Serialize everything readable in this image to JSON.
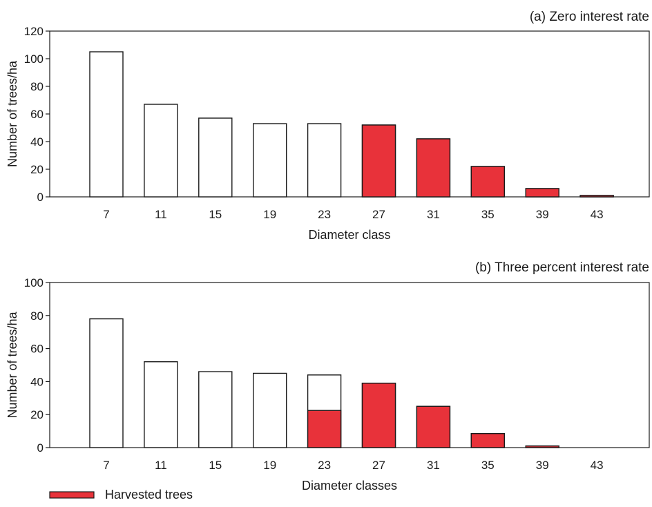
{
  "colors": {
    "harvested": "#e8323a",
    "standing": "#ffffff",
    "outline": "#1a1a1a"
  },
  "legend": {
    "harvested_label": "Harvested trees"
  },
  "chart_data": [
    {
      "type": "bar",
      "title": "(a) Zero interest rate",
      "xlabel": "Diameter class",
      "ylabel": "Number of trees/ha",
      "ylim": [
        0,
        120
      ],
      "yticks": [
        0,
        20,
        40,
        60,
        80,
        100,
        120
      ],
      "categories": [
        "7",
        "11",
        "15",
        "19",
        "23",
        "27",
        "31",
        "35",
        "39",
        "43"
      ],
      "series": [
        {
          "name": "",
          "role": "standing",
          "values": [
            105,
            67,
            57,
            53,
            53,
            52,
            42,
            22,
            6,
            1
          ]
        },
        {
          "name": "Harvested trees",
          "role": "harvested",
          "values": [
            0,
            0,
            0,
            0,
            0,
            52,
            42,
            22,
            6,
            1
          ]
        }
      ]
    },
    {
      "type": "bar",
      "title": "(b) Three percent interest rate",
      "xlabel": "Diameter classes",
      "ylabel": "Number of trees/ha",
      "ylim": [
        0,
        100
      ],
      "yticks": [
        0,
        20,
        40,
        60,
        80,
        100
      ],
      "categories": [
        "7",
        "11",
        "15",
        "19",
        "23",
        "27",
        "31",
        "35",
        "39",
        "43"
      ],
      "series": [
        {
          "name": "",
          "role": "standing",
          "values": [
            78,
            52,
            46,
            45,
            44,
            39,
            25,
            8.5,
            1,
            0
          ]
        },
        {
          "name": "Harvested trees",
          "role": "harvested",
          "values": [
            0,
            0,
            0,
            0,
            22.5,
            39,
            25,
            8.5,
            1,
            0
          ]
        }
      ]
    }
  ]
}
